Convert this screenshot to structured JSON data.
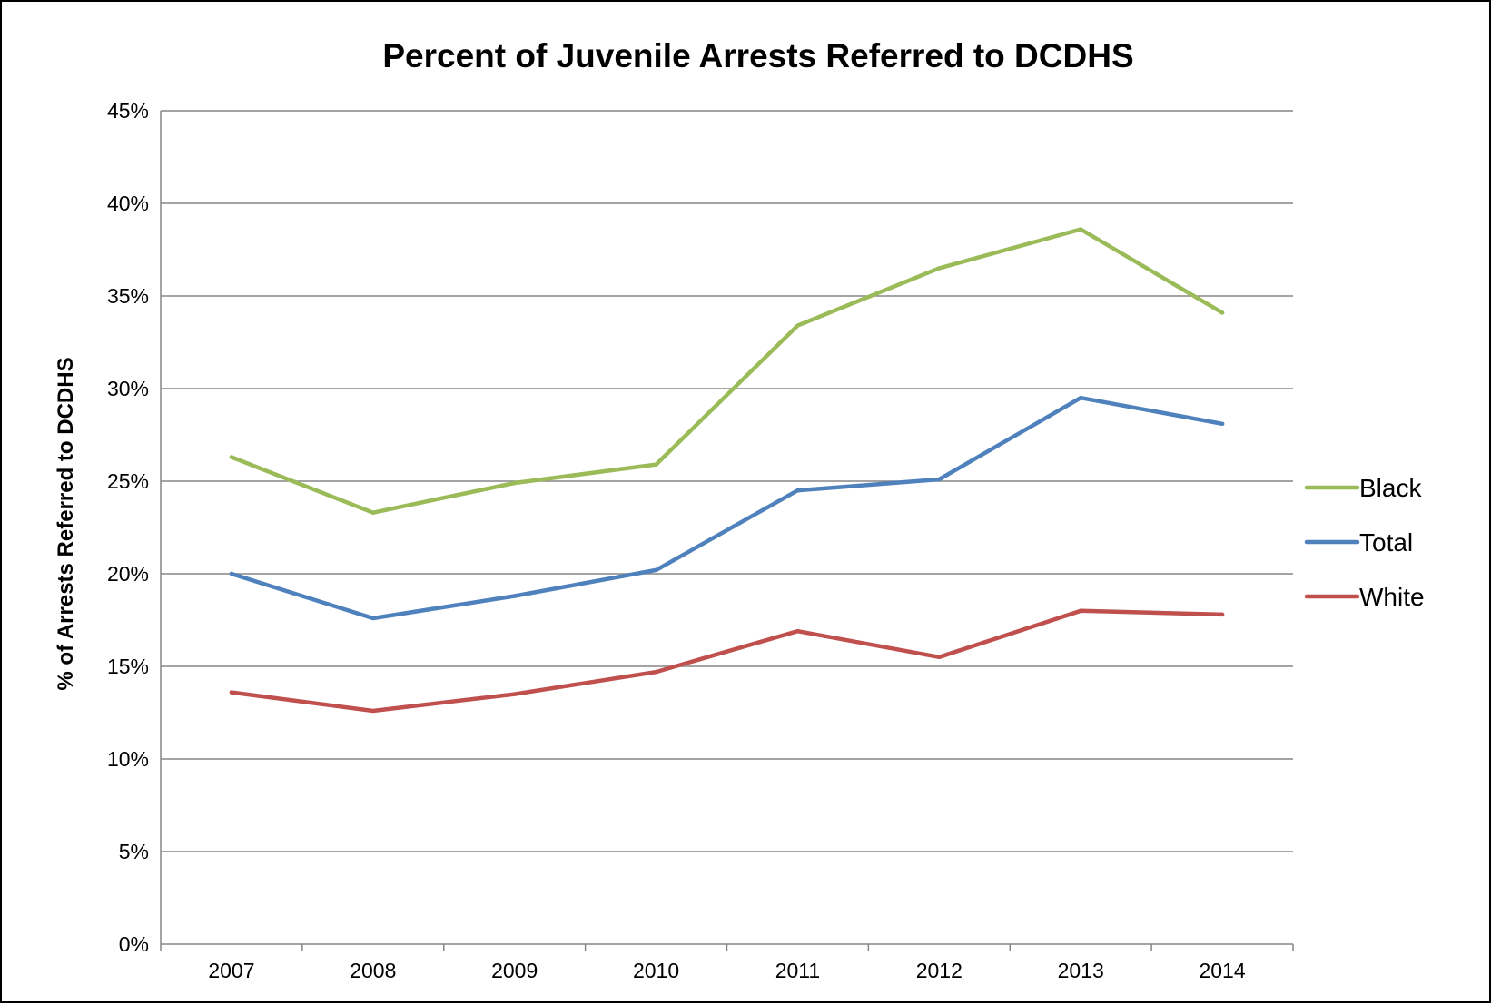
{
  "chart_data": {
    "type": "line",
    "title": "Percent of Juvenile Arrests Referred to DCDHS",
    "xlabel": "",
    "ylabel": "% of Arrests Referred to DCDHS",
    "x": [
      "2007",
      "2008",
      "2009",
      "2010",
      "2011",
      "2012",
      "2013",
      "2014"
    ],
    "ylim": [
      0,
      45
    ],
    "yticks": [
      0,
      5,
      10,
      15,
      20,
      25,
      30,
      35,
      40,
      45
    ],
    "ytick_labels": [
      "0%",
      "5%",
      "10%",
      "15%",
      "20%",
      "25%",
      "30%",
      "35%",
      "40%",
      "45%"
    ],
    "grid": "horizontal",
    "legend_position": "right",
    "series": [
      {
        "name": "Black",
        "color": "#9BBB59",
        "values": [
          26.3,
          23.3,
          24.9,
          25.9,
          33.4,
          36.5,
          38.6,
          34.1
        ]
      },
      {
        "name": "Total",
        "color": "#4F81BD",
        "values": [
          20.0,
          17.6,
          18.8,
          20.2,
          24.5,
          25.1,
          29.5,
          28.1
        ]
      },
      {
        "name": "White",
        "color": "#C0504D",
        "values": [
          13.6,
          12.6,
          13.5,
          14.7,
          16.9,
          15.5,
          18.0,
          17.8
        ]
      }
    ]
  }
}
